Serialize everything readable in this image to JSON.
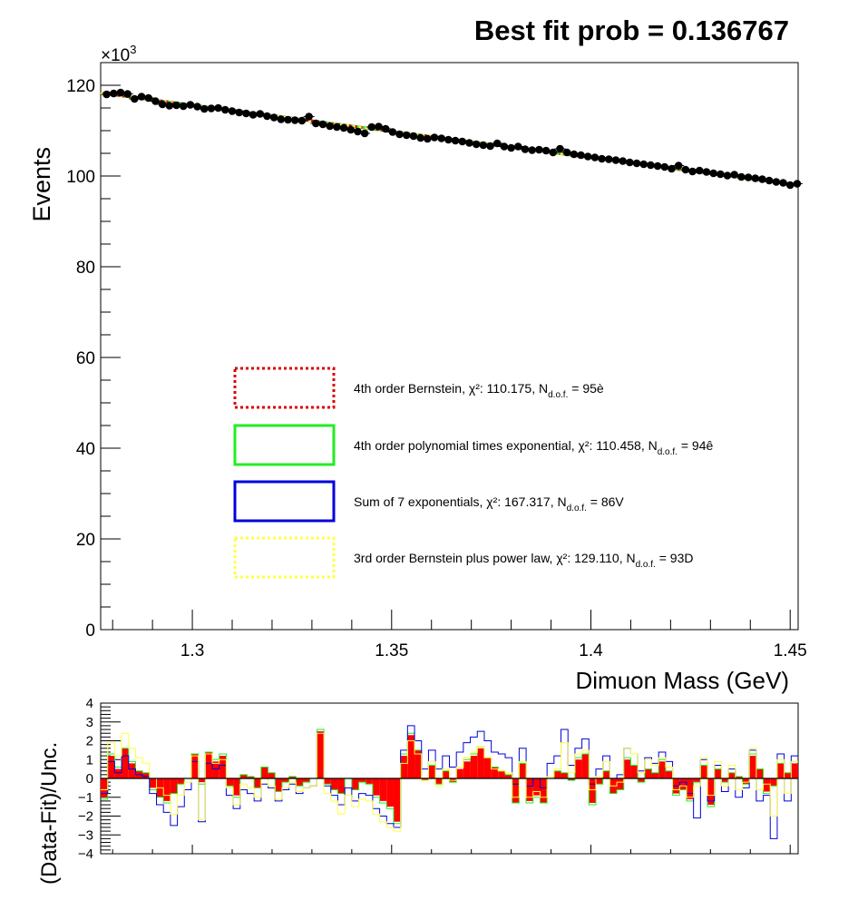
{
  "title": "Best fit prob = 0.136767",
  "colors": {
    "bernstein4": "#dd0000",
    "polyexp4": "#22ee22",
    "sumexp7": "#0000dd",
    "bernsteinpow3": "#ffff44",
    "data": "#000000",
    "residual_fill": "#ff0000"
  },
  "chart_data": [
    {
      "type": "scatter",
      "name": "main",
      "xlabel": "Dimuon Mass (GeV)",
      "ylabel": "Events",
      "y_exponent_label": "×10",
      "y_exponent_power": "3",
      "xlim": [
        1.277,
        1.452
      ],
      "ylim": [
        0,
        125
      ],
      "x_ticks": [
        1.3,
        1.35,
        1.4,
        1.45
      ],
      "x_tick_labels": [
        "1.3",
        "1.35",
        "1.4",
        "1.45"
      ],
      "y_ticks": [
        0,
        20,
        40,
        60,
        80,
        100,
        120
      ],
      "y_tick_labels": [
        "0",
        "20",
        "40",
        "60",
        "80",
        "100",
        "120"
      ],
      "y_units": "thousands of events",
      "fit_line": {
        "x_start": 1.277,
        "y_start": 118.3,
        "x_end": 1.452,
        "y_end": 98.0
      },
      "data_points": {
        "x_start": 1.2785,
        "x_step": 0.00175,
        "count": 100,
        "y": [
          118.0,
          118.2,
          118.4,
          118.1,
          117.0,
          117.5,
          117.2,
          116.5,
          115.8,
          115.5,
          115.6,
          115.4,
          115.7,
          115.3,
          114.8,
          114.9,
          115.0,
          114.6,
          114.3,
          114.0,
          113.8,
          113.5,
          113.7,
          113.2,
          112.9,
          112.5,
          112.4,
          112.3,
          112.2,
          113.1,
          111.6,
          111.4,
          111.0,
          110.8,
          110.6,
          110.2,
          109.8,
          109.4,
          110.8,
          110.9,
          110.4,
          109.7,
          109.2,
          109.0,
          108.8,
          108.4,
          108.2,
          108.5,
          108.3,
          108.0,
          107.8,
          107.6,
          107.3,
          107.0,
          106.8,
          106.6,
          107.2,
          106.5,
          106.2,
          106.5,
          105.9,
          105.7,
          105.8,
          105.6,
          105.2,
          106.0,
          105.2,
          104.8,
          104.6,
          104.3,
          104.1,
          103.8,
          103.7,
          103.5,
          103.3,
          103.0,
          102.8,
          102.6,
          102.4,
          102.2,
          102.0,
          101.6,
          102.3,
          101.4,
          101.0,
          101.2,
          100.9,
          100.6,
          100.4,
          100.1,
          100.3,
          99.8,
          99.7,
          99.5,
          99.3,
          99.0,
          98.7,
          98.5,
          98.0,
          98.3
        ]
      },
      "legend": [
        {
          "label": "4th order Bernstein, χ²: 110.175, N",
          "sub": "d.o.f.",
          "tail": " = 95è",
          "color_key": "bernstein4",
          "style": "dotted"
        },
        {
          "label": "4th order polynomial times exponential, χ²: 110.458, N",
          "sub": "d.o.f.",
          "tail": " = 94ê",
          "color_key": "polyexp4",
          "style": "solid"
        },
        {
          "label": "Sum of 7 exponentials, χ²: 167.317, N",
          "sub": "d.o.f.",
          "tail": " = 86V",
          "color_key": "sumexp7",
          "style": "solid"
        },
        {
          "label": "3rd order Bernstein plus power law, χ²: 129.110, N",
          "sub": "d.o.f.",
          "tail": " = 93D",
          "color_key": "bernsteinpow3",
          "style": "dotted"
        }
      ]
    },
    {
      "type": "bar",
      "name": "residuals",
      "ylabel": "(Data-Fit)/Unc.",
      "ylim": [
        -4,
        4
      ],
      "y_ticks": [
        -4,
        -3,
        -2,
        -1,
        0,
        1,
        2,
        3,
        4
      ],
      "y_tick_labels": [
        "−4",
        "−3",
        "−2",
        "−1",
        "0",
        "1",
        "2",
        "3",
        "4"
      ],
      "x_start": 1.277,
      "bin_width": 0.00175,
      "series": [
        {
          "name": "red",
          "color_key": "residual_fill",
          "style": "filled",
          "values": [
            -1.0,
            1.2,
            0.5,
            1.6,
            0.8,
            0.4,
            0.3,
            -0.5,
            -1.0,
            -1.2,
            -0.8,
            -0.3,
            0.0,
            1.3,
            -0.2,
            1.4,
            0.9,
            1.2,
            -0.4,
            -0.9,
            0.2,
            0.1,
            -0.5,
            0.6,
            0.3,
            -0.7,
            -0.2,
            0.1,
            -0.4,
            -0.2,
            0.0,
            2.5,
            -0.3,
            -0.6,
            -0.8,
            0.0,
            -0.6,
            -0.2,
            -0.3,
            -0.9,
            -1.2,
            -1.5,
            -2.3,
            1.2,
            2.3,
            1.5,
            -0.1,
            0.7,
            -0.3,
            0.4,
            -0.2,
            0.5,
            0.9,
            1.2,
            1.6,
            1.1,
            0.6,
            0.4,
            0.2,
            -1.3,
            0.8,
            -1.2,
            -0.9,
            -1.3,
            0.0,
            0.4,
            0.3,
            -0.1,
            1.0,
            1.3,
            -1.3,
            -0.3,
            0.4,
            -0.8,
            -0.6,
            1.0,
            0.7,
            -0.2,
            0.5,
            0.3,
            0.9,
            0.4,
            -0.8,
            -0.6,
            -1.1,
            -0.2,
            0.7,
            -1.4,
            0.5,
            -0.2,
            0.3,
            0.1,
            -0.3,
            1.2,
            0.5,
            -0.7,
            -0.4,
            0.8,
            0.3,
            0.8
          ]
        },
        {
          "name": "green",
          "color_key": "polyexp4",
          "style": "outline",
          "values": [
            -1.1,
            1.3,
            0.6,
            1.6,
            0.9,
            0.4,
            0.3,
            -0.6,
            -1.0,
            -1.3,
            -0.8,
            -0.3,
            0.0,
            1.3,
            -0.3,
            1.4,
            1.0,
            1.3,
            -0.4,
            -1.0,
            0.2,
            0.1,
            -0.5,
            0.6,
            0.3,
            -0.7,
            -0.2,
            0.1,
            -0.4,
            -0.2,
            0.0,
            2.6,
            -0.3,
            -0.6,
            -0.8,
            0.0,
            -0.6,
            -0.2,
            -0.3,
            -1.0,
            -1.3,
            -1.6,
            -2.4,
            1.3,
            2.4,
            1.5,
            -0.1,
            0.7,
            -0.3,
            0.4,
            -0.2,
            0.6,
            1.0,
            1.3,
            1.7,
            1.1,
            0.6,
            0.4,
            0.2,
            -1.3,
            0.8,
            -1.3,
            -1.0,
            -1.3,
            0.0,
            0.4,
            0.3,
            -0.1,
            1.1,
            1.3,
            -1.4,
            -0.3,
            0.4,
            -0.8,
            -0.6,
            1.1,
            0.7,
            -0.2,
            0.5,
            0.3,
            1.0,
            0.4,
            -0.9,
            -0.6,
            -1.2,
            -0.2,
            0.7,
            -1.5,
            0.5,
            -0.2,
            0.3,
            0.1,
            -0.3,
            1.3,
            0.5,
            -0.8,
            -0.4,
            0.8,
            0.3,
            0.9
          ]
        },
        {
          "name": "blue",
          "color_key": "sumexp7",
          "style": "outline",
          "values": [
            -0.8,
            0.9,
            0.3,
            1.2,
            0.5,
            0.2,
            0.1,
            -0.8,
            -1.4,
            -1.8,
            -2.5,
            -1.5,
            -0.6,
            0.9,
            -2.3,
            0.8,
            0.5,
            0.7,
            -0.9,
            -1.6,
            -0.6,
            -0.8,
            -1.2,
            -0.3,
            -0.5,
            -1.2,
            -0.6,
            -0.3,
            -0.8,
            -0.5,
            -0.4,
            2.4,
            -0.4,
            -0.9,
            -1.4,
            -0.5,
            -1.2,
            -0.8,
            -0.9,
            -1.6,
            -2.0,
            -2.4,
            -2.6,
            1.5,
            2.8,
            2.0,
            0.5,
            1.5,
            0.5,
            1.2,
            0.6,
            1.4,
            1.9,
            2.2,
            2.5,
            2.0,
            1.4,
            1.3,
            1.1,
            -0.3,
            1.6,
            -0.4,
            0.0,
            -0.5,
            0.8,
            1.2,
            2.6,
            0.7,
            1.6,
            2.1,
            -0.3,
            0.5,
            1.2,
            0.0,
            0.2,
            1.6,
            1.3,
            0.4,
            1.1,
            0.8,
            1.4,
            0.9,
            -0.4,
            -0.2,
            -0.8,
            -2.1,
            1.0,
            -1.2,
            0.7,
            -0.7,
            0.5,
            -1.0,
            -0.5,
            1.5,
            -1.2,
            -0.9,
            -3.2,
            1.3,
            -1.2,
            1.2
          ]
        },
        {
          "name": "yellow",
          "color_key": "bernsteinpow3",
          "style": "outline",
          "values": [
            -0.6,
            1.9,
            1.2,
            2.4,
            1.6,
            1.1,
            0.8,
            0.0,
            -0.5,
            -0.9,
            -1.9,
            -0.9,
            -0.2,
            1.2,
            -2.2,
            1.3,
            0.8,
            1.0,
            -0.5,
            -1.4,
            -0.3,
            -0.5,
            -1.0,
            0.0,
            -0.4,
            -1.1,
            -0.5,
            -0.2,
            -0.7,
            -0.5,
            -0.4,
            2.4,
            -0.8,
            -1.2,
            -1.9,
            -0.9,
            -1.5,
            -1.1,
            -1.2,
            -1.9,
            -2.3,
            -2.6,
            -2.8,
            0.8,
            2.0,
            1.3,
            -0.1,
            0.9,
            -0.4,
            0.5,
            -0.1,
            0.6,
            1.1,
            1.4,
            1.7,
            1.1,
            0.5,
            0.4,
            0.3,
            -1.0,
            0.9,
            -1.0,
            -0.7,
            -1.0,
            0.1,
            0.5,
            1.9,
            0.3,
            1.3,
            1.5,
            -0.6,
            0.1,
            0.9,
            -0.4,
            -0.2,
            1.6,
            1.3,
            0.3,
            1.0,
            0.7,
            1.1,
            0.6,
            -0.6,
            -0.4,
            -1.0,
            -0.4,
            1.1,
            -0.9,
            0.9,
            -0.4,
            0.7,
            -0.6,
            -0.2,
            1.6,
            -0.6,
            -0.3,
            -2.0,
            1.0,
            -0.8,
            0.9
          ]
        }
      ]
    }
  ]
}
